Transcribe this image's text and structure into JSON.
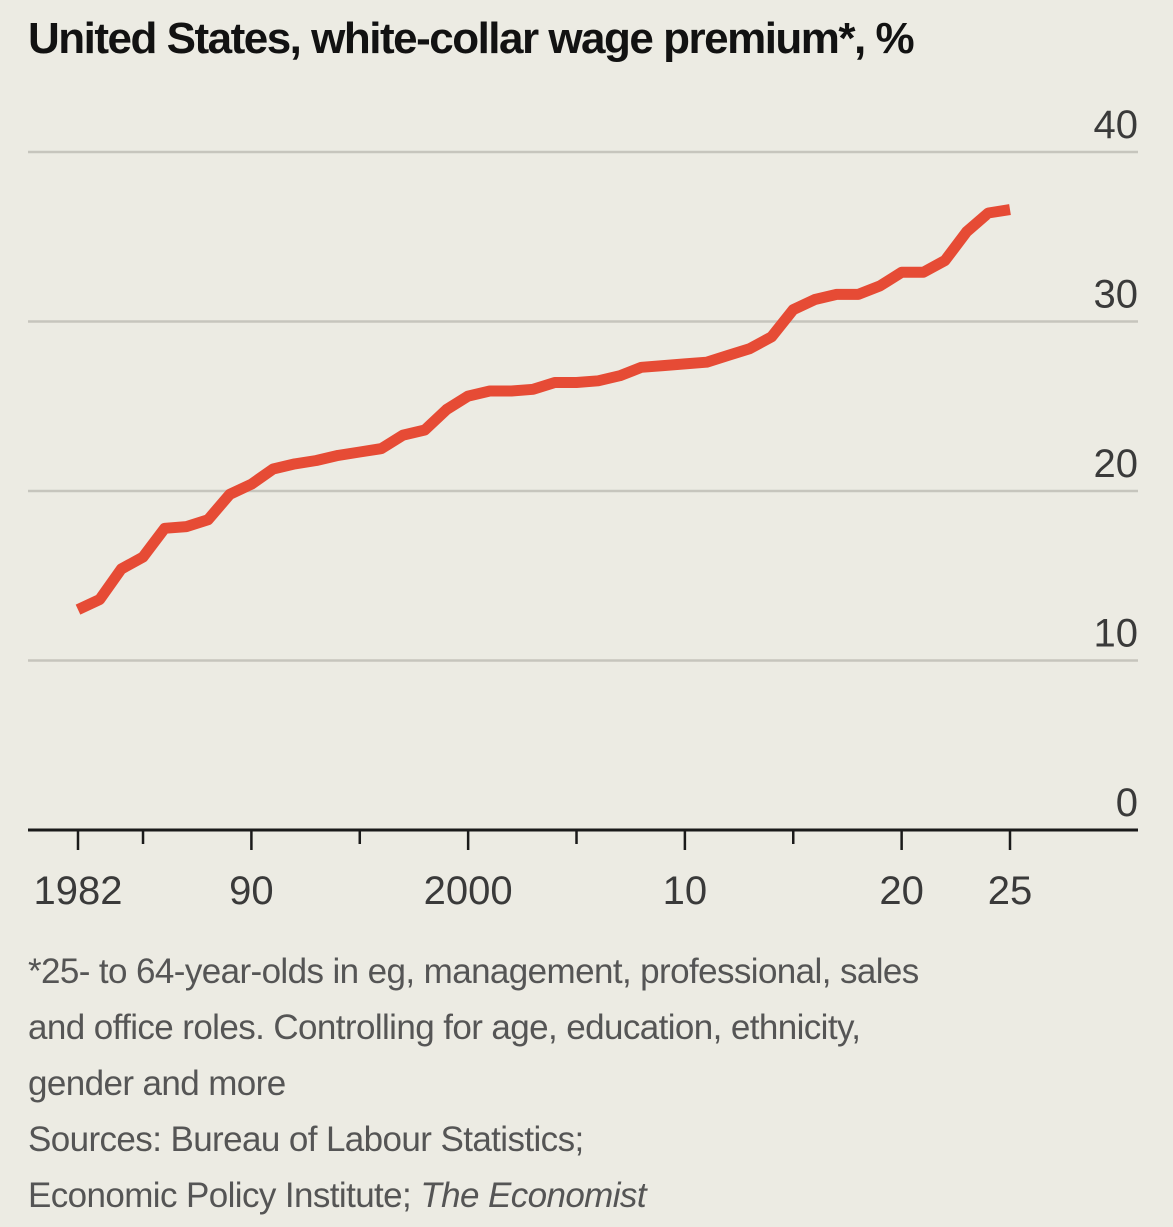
{
  "chart_data": {
    "type": "line",
    "title": "United States, white-collar wage premium*, %",
    "xlabel": "",
    "ylabel": "",
    "ylim": [
      0,
      40
    ],
    "y_ticks": [
      0,
      10,
      20,
      30,
      40
    ],
    "x_range": [
      1980,
      2032
    ],
    "x_ticks": [
      {
        "year": 1982,
        "label": "1982"
      },
      {
        "year": 1990,
        "label": "90"
      },
      {
        "year": 2000,
        "label": "2000"
      },
      {
        "year": 2010,
        "label": "10"
      },
      {
        "year": 2020,
        "label": "20"
      },
      {
        "year": 2025,
        "label": "25"
      }
    ],
    "x_minor_ticks": [
      1985,
      1995,
      2005,
      2015
    ],
    "grid": true,
    "series": [
      {
        "name": "White-collar wage premium",
        "color": "#e64b35",
        "x": [
          1982,
          1983,
          1984,
          1985,
          1986,
          1987,
          1988,
          1989,
          1990,
          1991,
          1992,
          1993,
          1994,
          1995,
          1996,
          1997,
          1998,
          1999,
          2000,
          2001,
          2002,
          2003,
          2004,
          2005,
          2006,
          2007,
          2008,
          2009,
          2010,
          2011,
          2012,
          2013,
          2014,
          2015,
          2016,
          2017,
          2018,
          2019,
          2020,
          2021,
          2022,
          2023,
          2024,
          2025
        ],
        "values": [
          13.0,
          13.6,
          15.4,
          16.1,
          17.8,
          17.9,
          18.3,
          19.8,
          20.4,
          21.3,
          21.6,
          21.8,
          22.1,
          22.3,
          22.5,
          23.3,
          23.6,
          24.8,
          25.6,
          25.9,
          25.9,
          26.0,
          26.4,
          26.4,
          26.5,
          26.8,
          27.3,
          27.4,
          27.5,
          27.6,
          28.0,
          28.4,
          29.1,
          30.7,
          31.3,
          31.6,
          31.6,
          32.1,
          32.9,
          32.9,
          33.6,
          35.3,
          36.4,
          36.6
        ]
      }
    ],
    "footnote_lines": [
      "*25- to 64-year-olds in eg, management, professional, sales",
      "and office roles. Controlling for age, education, ethnicity,",
      "gender and more"
    ],
    "sources_line1": "Sources: Bureau of Labour Statistics;",
    "sources_line2_prefix": "Economic Policy Institute; ",
    "sources_line2_italic": "The Economist"
  },
  "colors": {
    "background": "#ecebe3",
    "line": "#e64b35",
    "grid": "#c6c5bd",
    "axis": "#1a1a1a",
    "tick_text": "#3a3a3a"
  }
}
